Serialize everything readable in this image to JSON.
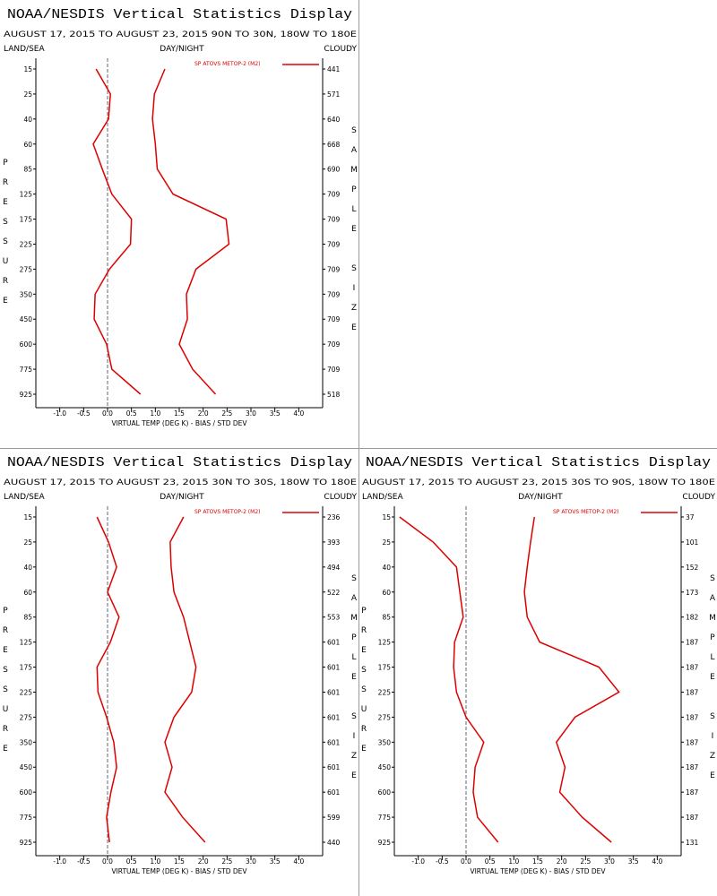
{
  "chart_data": [
    {
      "type": "line",
      "title": "NOAA/NESDIS Vertical Statistics Display",
      "subtitle": "AUGUST 17, 2015 TO AUGUST 23, 2015  90N TO 30N, 180W TO 180E",
      "left_label": "LAND/SEA",
      "center_label": "DAY/NIGHT",
      "right_label": "CLOUDY",
      "legend": "SP ATOVS METOP-2 (M2)",
      "y_label": "PRESSURE",
      "y2_label": "SAMPLE SIZE",
      "x_label": "VIRTUAL TEMP (DEG K) - BIAS / STD DEV",
      "categories": [
        15,
        25,
        40,
        60,
        85,
        125,
        175,
        225,
        275,
        350,
        450,
        600,
        775,
        925
      ],
      "sample_sizes": [
        441,
        571,
        640,
        668,
        690,
        709,
        709,
        709,
        709,
        709,
        709,
        709,
        709,
        518
      ],
      "xlim": [
        -1.5,
        4.5
      ],
      "xticks": [
        {
          "value": -1.0,
          "label": "-1.0"
        },
        -0.5,
        {
          "value": 0.0,
          "label": "0.0"
        },
        0.5,
        {
          "value": 1.0,
          "label": "1.0"
        },
        1.5,
        {
          "value": 2.0,
          "label": "2.0"
        },
        2.5,
        {
          "value": 3.0,
          "label": "3.0"
        },
        3.5,
        {
          "value": 4.0,
          "label": "4.0"
        }
      ],
      "series": [
        {
          "color": "#dd0000",
          "values": [
            -0.24,
            0.06,
            0.02,
            -0.3,
            -0.11,
            0.09,
            0.5,
            0.48,
            0.04,
            -0.26,
            -0.28,
            -0.02,
            0.09,
            0.69
          ]
        },
        {
          "color": "#dd0000",
          "values": [
            1.2,
            0.98,
            0.94,
            1.0,
            1.04,
            1.37,
            2.48,
            2.54,
            1.85,
            1.65,
            1.67,
            1.5,
            1.78,
            2.26
          ]
        }
      ]
    },
    {
      "type": "line",
      "title": "NOAA/NESDIS Vertical Statistics Display",
      "subtitle": "AUGUST 17, 2015 TO AUGUST 23, 2015  30N TO 30S, 180W TO 180E",
      "left_label": "LAND/SEA",
      "center_label": "DAY/NIGHT",
      "right_label": "CLOUDY",
      "legend": "SP ATOVS METOP-2 (M2)",
      "y_label": "PRESSURE",
      "y2_label": "SAMPLE SIZE",
      "x_label": "VIRTUAL TEMP (DEG K) - BIAS / STD DEV",
      "categories": [
        15,
        25,
        40,
        60,
        85,
        125,
        175,
        225,
        275,
        350,
        450,
        600,
        775,
        925
      ],
      "sample_sizes": [
        236,
        393,
        494,
        522,
        553,
        601,
        601,
        601,
        601,
        601,
        601,
        601,
        599,
        440
      ],
      "xlim": [
        -1.5,
        4.5
      ],
      "xticks": [
        {
          "value": -1.0,
          "label": "-1.0"
        },
        -0.5,
        {
          "value": 0.0,
          "label": "0.0"
        },
        0.5,
        {
          "value": 1.0,
          "label": "1.0"
        },
        1.5,
        {
          "value": 2.0,
          "label": "2.0"
        },
        2.5,
        {
          "value": 3.0,
          "label": "3.0"
        },
        3.5,
        {
          "value": 4.0,
          "label": "4.0"
        }
      ],
      "series": [
        {
          "color": "#dd0000",
          "values": [
            -0.22,
            0.02,
            0.19,
            0.0,
            0.24,
            0.06,
            -0.22,
            -0.2,
            -0.02,
            0.13,
            0.19,
            0.07,
            -0.02,
            0.04
          ]
        },
        {
          "color": "#dd0000",
          "values": [
            1.59,
            1.31,
            1.33,
            1.39,
            1.59,
            1.72,
            1.85,
            1.76,
            1.39,
            1.2,
            1.35,
            1.2,
            1.57,
            2.04
          ]
        }
      ]
    },
    {
      "type": "line",
      "title": "NOAA/NESDIS Vertical Statistics Display",
      "subtitle": "AUGUST 17, 2015 TO AUGUST 23, 2015  30S TO 90S, 180W TO 180E",
      "left_label": "LAND/SEA",
      "center_label": "DAY/NIGHT",
      "right_label": "CLOUDY",
      "legend": "SP ATOVS METOP-2 (M2)",
      "y_label": "PRESSURE",
      "y2_label": "SAMPLE SIZE",
      "x_label": "VIRTUAL TEMP (DEG K) - BIAS / STD DEV",
      "categories": [
        15,
        25,
        40,
        60,
        85,
        125,
        175,
        225,
        275,
        350,
        450,
        600,
        775,
        925
      ],
      "sample_sizes": [
        37,
        101,
        152,
        173,
        182,
        187,
        187,
        187,
        187,
        187,
        187,
        187,
        187,
        131
      ],
      "xlim": [
        -1.5,
        4.5
      ],
      "xticks": [
        {
          "value": -1.0,
          "label": "-1.0"
        },
        -0.5,
        {
          "value": 0.0,
          "label": "0.0"
        },
        0.5,
        {
          "value": 1.0,
          "label": "1.0"
        },
        1.5,
        {
          "value": 2.0,
          "label": "2.0"
        },
        2.5,
        {
          "value": 3.0,
          "label": "3.0"
        },
        3.5,
        {
          "value": 4.0,
          "label": "4.0"
        }
      ],
      "series": [
        {
          "color": "#dd0000",
          "values": [
            -1.39,
            -0.69,
            -0.2,
            -0.13,
            -0.06,
            -0.24,
            -0.26,
            -0.2,
            0.0,
            0.37,
            0.19,
            0.15,
            0.24,
            0.67
          ]
        },
        {
          "color": "#dd0000",
          "values": [
            1.43,
            1.35,
            1.28,
            1.22,
            1.28,
            1.54,
            2.78,
            3.2,
            2.28,
            1.89,
            2.07,
            1.96,
            2.43,
            3.04
          ]
        }
      ]
    }
  ]
}
